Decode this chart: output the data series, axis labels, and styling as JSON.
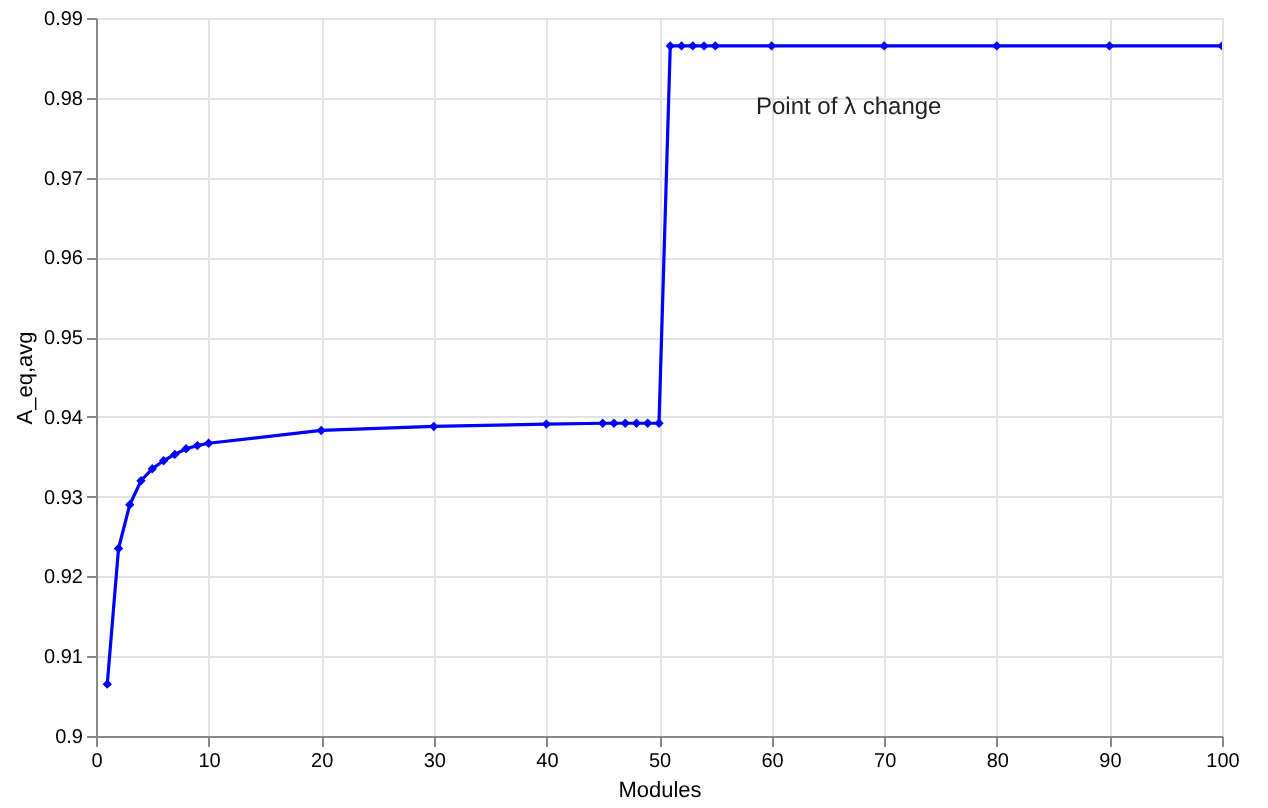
{
  "chart_data": {
    "type": "line",
    "xlabel": "Modules",
    "ylabel": "A_eq,avg",
    "x": [
      1,
      2,
      3,
      4,
      5,
      6,
      7,
      8,
      9,
      10,
      20,
      30,
      40,
      45,
      46,
      47,
      48,
      49,
      50,
      51,
      52,
      53,
      54,
      55,
      60,
      70,
      80,
      90,
      100
    ],
    "series": [
      {
        "color": "#0000ff",
        "values": [
          0.9065,
          0.9235,
          0.929,
          0.932,
          0.9335,
          0.9345,
          0.9353,
          0.936,
          0.9364,
          0.9367,
          0.9383,
          0.9388,
          0.9391,
          0.9392,
          0.9392,
          0.9392,
          0.9392,
          0.9392,
          0.9392,
          0.9865,
          0.9865,
          0.9865,
          0.9865,
          0.9865,
          0.9865,
          0.9865,
          0.9865,
          0.9865,
          0.9865
        ]
      }
    ],
    "annotations": [
      "Point of λ change"
    ],
    "xlim": [
      0,
      100
    ],
    "ylim": [
      0.9,
      0.99
    ],
    "xticks": [
      0,
      10,
      20,
      30,
      40,
      50,
      60,
      70,
      80,
      90,
      100
    ],
    "yticks": [
      0.9,
      0.91,
      0.92,
      0.93,
      0.94,
      0.95,
      0.96,
      0.97,
      0.98,
      0.99
    ],
    "grid": true,
    "marker": "diamond",
    "line_style": "solid"
  }
}
